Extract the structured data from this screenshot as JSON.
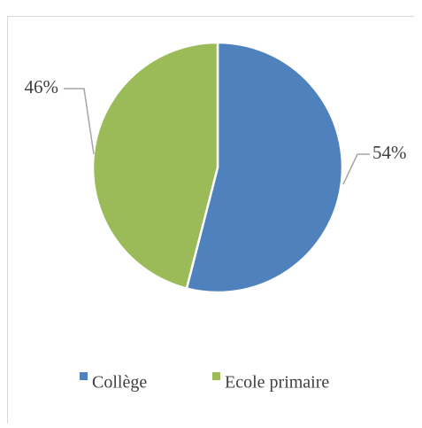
{
  "chart_data": {
    "type": "pie",
    "categories": [
      "Collège",
      "Ecole primaire"
    ],
    "values": [
      54,
      46
    ],
    "labels": [
      "54%",
      "46%"
    ],
    "colors": [
      "#4f81bd",
      "#9bbb59"
    ],
    "title": "",
    "legend_position": "bottom"
  }
}
